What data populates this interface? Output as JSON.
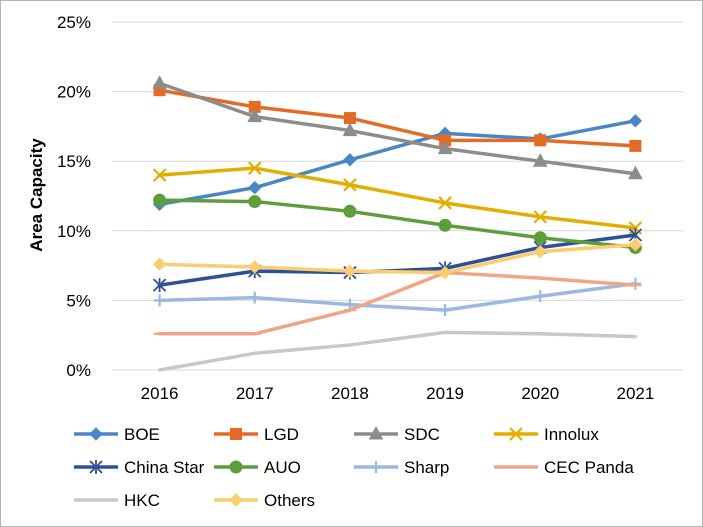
{
  "chart_data": {
    "type": "line",
    "title": "",
    "xlabel": "",
    "ylabel": "Area Capacity",
    "categories": [
      "2016",
      "2017",
      "2018",
      "2019",
      "2020",
      "2021"
    ],
    "ylim": [
      0,
      25
    ],
    "yticks": [
      0,
      5,
      10,
      15,
      20,
      25
    ],
    "ytick_labels": [
      "0%",
      "5%",
      "10%",
      "15%",
      "20%",
      "25%"
    ],
    "grid": "horizontal",
    "legend_position": "bottom",
    "series": [
      {
        "name": "BOE",
        "color": "#4a86c6",
        "marker": "diamond",
        "values": [
          11.9,
          13.1,
          15.1,
          17.0,
          16.6,
          17.9
        ]
      },
      {
        "name": "LGD",
        "color": "#e36b25",
        "marker": "square",
        "values": [
          20.1,
          18.9,
          18.1,
          16.5,
          16.5,
          16.1
        ]
      },
      {
        "name": "SDC",
        "color": "#8c8c8c",
        "marker": "triangle",
        "values": [
          20.6,
          18.2,
          17.2,
          15.9,
          15.0,
          14.1
        ]
      },
      {
        "name": "Innolux",
        "color": "#e3ad02",
        "marker": "x",
        "values": [
          14.0,
          14.5,
          13.3,
          12.0,
          11.0,
          10.2
        ]
      },
      {
        "name": "China Star",
        "color": "#2c5197",
        "marker": "star",
        "values": [
          6.1,
          7.1,
          7.0,
          7.3,
          8.8,
          9.7
        ]
      },
      {
        "name": "AUO",
        "color": "#5e9e3a",
        "marker": "circle",
        "values": [
          12.2,
          12.1,
          11.4,
          10.4,
          9.5,
          8.8
        ]
      },
      {
        "name": "Sharp",
        "color": "#9bb9e0",
        "marker": "plus",
        "values": [
          5.0,
          5.2,
          4.7,
          4.3,
          5.3,
          6.2
        ]
      },
      {
        "name": "CEC Panda",
        "color": "#f0a587",
        "marker": "dash",
        "values": [
          2.6,
          2.6,
          4.3,
          7.0,
          6.6,
          6.1
        ]
      },
      {
        "name": "HKC",
        "color": "#c8c8c8",
        "marker": "none",
        "values": [
          0.0,
          1.2,
          1.8,
          2.7,
          2.6,
          2.4
        ]
      },
      {
        "name": "Others",
        "color": "#fccc70",
        "marker": "diamond",
        "values": [
          7.6,
          7.4,
          7.1,
          7.0,
          8.5,
          9.0
        ]
      }
    ]
  }
}
